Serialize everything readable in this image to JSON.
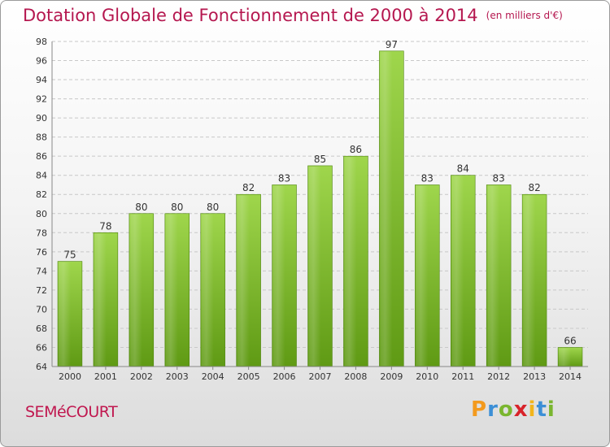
{
  "header": {
    "title": "Dotation Globale de Fonctionnement de 2000 à 2014",
    "unit": "(en milliers d'€)"
  },
  "footer": {
    "commune": "SEMéCOURT",
    "logo": "Proxiti"
  },
  "colors": {
    "title": "#b5174f",
    "bar_top": "#9fd64c",
    "bar_bottom": "#5f9a14"
  },
  "chart_data": {
    "type": "bar",
    "title": "Dotation Globale de Fonctionnement de 2000 à 2014",
    "subtitle": "(en milliers d'€)",
    "xlabel": "",
    "ylabel": "",
    "ylim": [
      64,
      98
    ],
    "yticks": [
      64,
      66,
      68,
      70,
      72,
      74,
      76,
      78,
      80,
      82,
      84,
      86,
      88,
      90,
      92,
      94,
      96,
      98
    ],
    "grid": true,
    "categories": [
      "2000",
      "2001",
      "2002",
      "2003",
      "2004",
      "2005",
      "2006",
      "2007",
      "2008",
      "2009",
      "2010",
      "2011",
      "2012",
      "2013",
      "2014"
    ],
    "values": [
      75,
      78,
      80,
      80,
      80,
      82,
      83,
      85,
      86,
      97,
      83,
      84,
      83,
      82,
      66
    ]
  }
}
